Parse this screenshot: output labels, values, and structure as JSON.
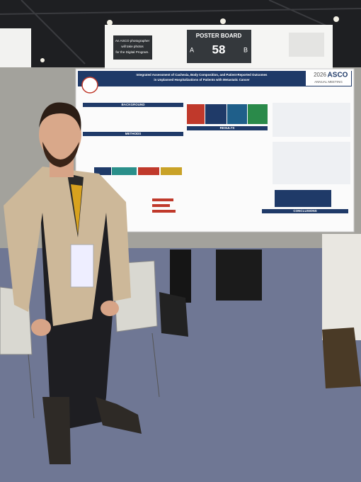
{
  "sign": {
    "lines": [
      "An ASCO photographer",
      "will take photos",
      "for the Digital Program."
    ]
  },
  "board": {
    "label": "POSTER BOARD",
    "side_a": "A",
    "number": "58",
    "side_b": "B"
  },
  "poster": {
    "title_lines": [
      "Integrated Assessment of Cachexia, Body Composition, and Patient-Reported Outcomes",
      "in Unplanned Hospitalizations of Patients with Metastatic Cancer"
    ],
    "meeting_year": "2026",
    "meeting_name": "ASCO",
    "meeting_sub": "ANNUAL MEETING",
    "sections": [
      "BACKGROUND",
      "METHODS",
      "RESULTS",
      "CONCLUSIONS"
    ]
  }
}
